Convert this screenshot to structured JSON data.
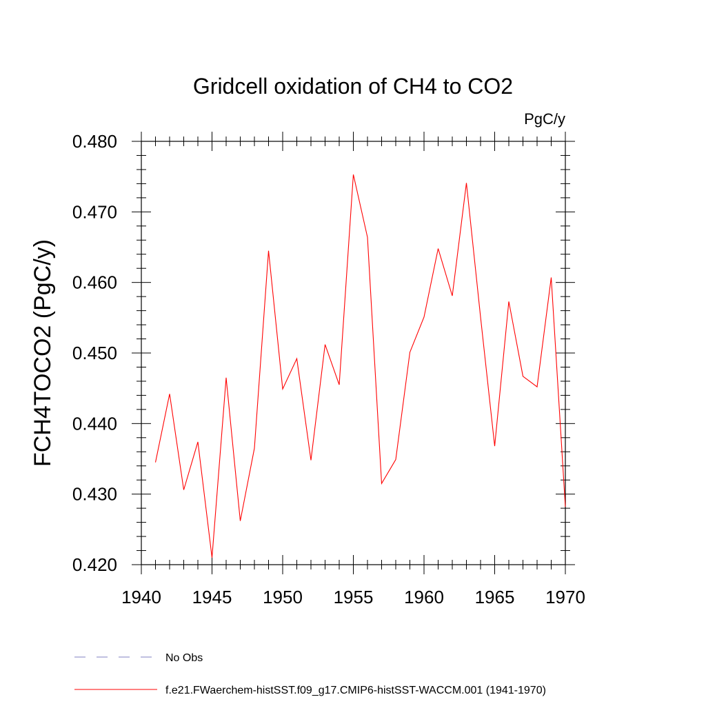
{
  "chart_data": {
    "type": "line",
    "title": "Gridcell oxidation of CH4 to CO2",
    "units_label": "PgC/y",
    "xlabel": "",
    "ylabel": "FCH4TOCO2  (PgC/y)",
    "xlim": [
      1940,
      1970
    ],
    "ylim": [
      0.42,
      0.48
    ],
    "x_ticks": [
      1940,
      1945,
      1950,
      1955,
      1960,
      1965,
      1970
    ],
    "x_tick_labels": [
      "1940",
      "1945",
      "1950",
      "1955",
      "1960",
      "1965",
      "1970"
    ],
    "y_ticks": [
      0.42,
      0.43,
      0.44,
      0.45,
      0.46,
      0.47,
      0.48
    ],
    "y_tick_labels": [
      "0.420",
      "0.430",
      "0.440",
      "0.450",
      "0.460",
      "0.470",
      "0.480"
    ],
    "grid": false,
    "legend_placement": "bottom-left",
    "series": [
      {
        "name": "f.e21.FWaerchem-histSST.f09_g17.CMIP6-histSST-WACCM.001 (1941-1970)",
        "color": "#ff0000",
        "dash": "solid",
        "x": [
          1941,
          1942,
          1943,
          1944,
          1945,
          1946,
          1947,
          1948,
          1949,
          1950,
          1951,
          1952,
          1953,
          1954,
          1955,
          1956,
          1957,
          1958,
          1959,
          1960,
          1961,
          1962,
          1963,
          1964,
          1965,
          1966,
          1967,
          1968,
          1969,
          1970
        ],
        "y": [
          0.4345,
          0.4442,
          0.4306,
          0.4374,
          0.421,
          0.4465,
          0.4262,
          0.4365,
          0.4645,
          0.4449,
          0.4492,
          0.4348,
          0.4512,
          0.4455,
          0.4753,
          0.4664,
          0.4315,
          0.4349,
          0.4501,
          0.4551,
          0.4648,
          0.4581,
          0.4741,
          0.4551,
          0.4368,
          0.4573,
          0.4467,
          0.4452,
          0.4607,
          0.4282
        ]
      },
      {
        "name": "No Obs",
        "color": "#8080c0",
        "dash": "dashed",
        "x": [],
        "y": []
      }
    ]
  }
}
